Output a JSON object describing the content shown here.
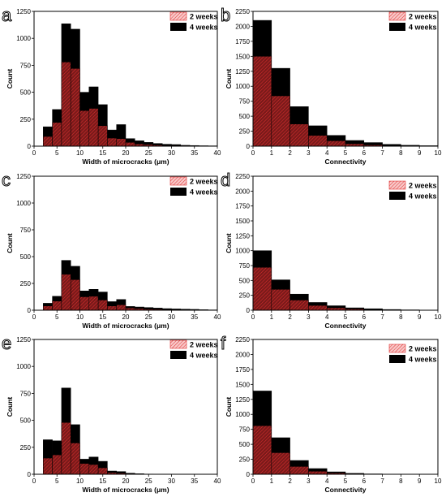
{
  "colors": {
    "bar_4weeks": "#000000",
    "bar_2weeks_fill": "#7a1a1a",
    "bar_2weeks_hatch": "#e03030",
    "legend_2weeks_fill": "#f8c8c8"
  },
  "chart_data": [
    {
      "panel": "a",
      "type": "bar",
      "mode": "overlay",
      "xlabel": "Width of microcracks (μm)",
      "ylabel": "Count",
      "xlim": [
        0,
        40
      ],
      "ylim": [
        0,
        1250
      ],
      "xticks": [
        0,
        5,
        10,
        15,
        20,
        25,
        30,
        35,
        40
      ],
      "yticks": [
        0,
        250,
        500,
        750,
        1000,
        1250
      ],
      "bin_width": 2,
      "bin_starts": [
        2,
        4,
        6,
        8,
        10,
        12,
        14,
        16,
        18,
        20,
        22,
        24,
        26,
        28,
        30,
        32,
        34,
        36,
        38
      ],
      "series": [
        {
          "name": "2 weeks",
          "values": [
            90,
            220,
            780,
            720,
            330,
            350,
            190,
            75,
            70,
            35,
            20,
            15,
            10,
            6,
            5,
            4,
            3,
            2,
            1
          ]
        },
        {
          "name": "4 weeks",
          "values": [
            180,
            340,
            1135,
            1085,
            500,
            550,
            385,
            150,
            200,
            70,
            50,
            35,
            25,
            18,
            15,
            8,
            6,
            4,
            3
          ]
        }
      ]
    },
    {
      "panel": "b",
      "type": "bar",
      "mode": "overlay",
      "xlabel": "Connectivity",
      "ylabel": "Count",
      "xlim": [
        0,
        10
      ],
      "ylim": [
        0,
        2250
      ],
      "xticks": [
        0,
        1,
        2,
        3,
        4,
        5,
        6,
        7,
        8,
        9,
        10
      ],
      "yticks": [
        0,
        250,
        500,
        750,
        1000,
        1250,
        1500,
        1750,
        2000,
        2250
      ],
      "bin_width": 1,
      "bin_starts": [
        0,
        1,
        2,
        3,
        4,
        5,
        6,
        7,
        8,
        9
      ],
      "series": [
        {
          "name": "2 weeks",
          "values": [
            1500,
            840,
            370,
            180,
            90,
            40,
            20,
            10,
            5,
            2
          ]
        },
        {
          "name": "4 weeks",
          "values": [
            2100,
            1300,
            660,
            340,
            180,
            95,
            60,
            30,
            15,
            8
          ]
        }
      ]
    },
    {
      "panel": "c",
      "type": "bar",
      "mode": "overlay",
      "xlabel": "Width of microcracks (μm)",
      "ylabel": "Count",
      "xlim": [
        0,
        40
      ],
      "ylim": [
        0,
        1250
      ],
      "xticks": [
        0,
        5,
        10,
        15,
        20,
        25,
        30,
        35,
        40
      ],
      "yticks": [
        0,
        250,
        500,
        750,
        1000,
        1250
      ],
      "bin_width": 2,
      "bin_starts": [
        2,
        4,
        6,
        8,
        10,
        12,
        14,
        16,
        18,
        20,
        22,
        24,
        26,
        28,
        30,
        32,
        34,
        36,
        38
      ],
      "series": [
        {
          "name": "2 weeks",
          "values": [
            40,
            85,
            335,
            285,
            125,
            130,
            95,
            40,
            50,
            20,
            15,
            10,
            8,
            5,
            4,
            3,
            2,
            2,
            1
          ]
        },
        {
          "name": "4 weeks",
          "values": [
            65,
            130,
            465,
            410,
            180,
            195,
            170,
            80,
            100,
            35,
            30,
            25,
            20,
            15,
            12,
            10,
            8,
            5,
            3
          ]
        }
      ]
    },
    {
      "panel": "d",
      "type": "bar",
      "mode": "overlay",
      "xlabel": "Connectivity",
      "ylabel": "Count",
      "xlim": [
        0,
        10
      ],
      "ylim": [
        0,
        2250
      ],
      "xticks": [
        0,
        1,
        2,
        3,
        4,
        5,
        6,
        7,
        8,
        9,
        10
      ],
      "yticks": [
        0,
        250,
        500,
        750,
        1000,
        1250,
        1500,
        1750,
        2000,
        2250
      ],
      "bin_width": 1,
      "bin_starts": [
        0,
        1,
        2,
        3,
        4,
        5,
        6,
        7,
        8,
        9
      ],
      "series": [
        {
          "name": "2 weeks",
          "values": [
            720,
            350,
            170,
            80,
            40,
            20,
            10,
            5,
            2,
            1
          ]
        },
        {
          "name": "4 weeks",
          "values": [
            1000,
            510,
            270,
            130,
            75,
            40,
            25,
            12,
            6,
            3
          ]
        }
      ]
    },
    {
      "panel": "e",
      "type": "bar",
      "mode": "overlay",
      "xlabel": "Width of microcracks (μm)",
      "ylabel": "Count",
      "xlim": [
        0,
        40
      ],
      "ylim": [
        0,
        1250
      ],
      "xticks": [
        0,
        5,
        10,
        15,
        20,
        25,
        30,
        35,
        40
      ],
      "yticks": [
        0,
        250,
        500,
        750,
        1000,
        1250
      ],
      "bin_width": 2,
      "bin_starts": [
        2,
        4,
        6,
        8,
        10,
        12,
        14,
        16,
        18,
        20,
        22,
        24
      ],
      "series": [
        {
          "name": "2 weeks",
          "values": [
            150,
            180,
            480,
            290,
            100,
            90,
            60,
            15,
            10,
            5,
            2,
            1
          ]
        },
        {
          "name": "4 weeks",
          "values": [
            320,
            310,
            800,
            460,
            140,
            160,
            120,
            30,
            25,
            10,
            5,
            2
          ]
        }
      ]
    },
    {
      "panel": "f",
      "type": "bar",
      "mode": "overlay",
      "xlabel": "Connectivity",
      "ylabel": "Count",
      "xlim": [
        0,
        10
      ],
      "ylim": [
        0,
        2250
      ],
      "xticks": [
        0,
        1,
        2,
        3,
        4,
        5,
        6,
        7,
        8,
        9,
        10
      ],
      "yticks": [
        0,
        250,
        500,
        750,
        1000,
        1250,
        1500,
        1750,
        2000,
        2250
      ],
      "bin_width": 1,
      "bin_starts": [
        0,
        1,
        2,
        3,
        4,
        5,
        6,
        7,
        8,
        9
      ],
      "series": [
        {
          "name": "2 weeks",
          "values": [
            810,
            360,
            130,
            50,
            20,
            8,
            3,
            1,
            0,
            0
          ]
        },
        {
          "name": "4 weeks",
          "values": [
            1390,
            610,
            230,
            95,
            40,
            15,
            6,
            2,
            1,
            0
          ]
        }
      ]
    }
  ]
}
